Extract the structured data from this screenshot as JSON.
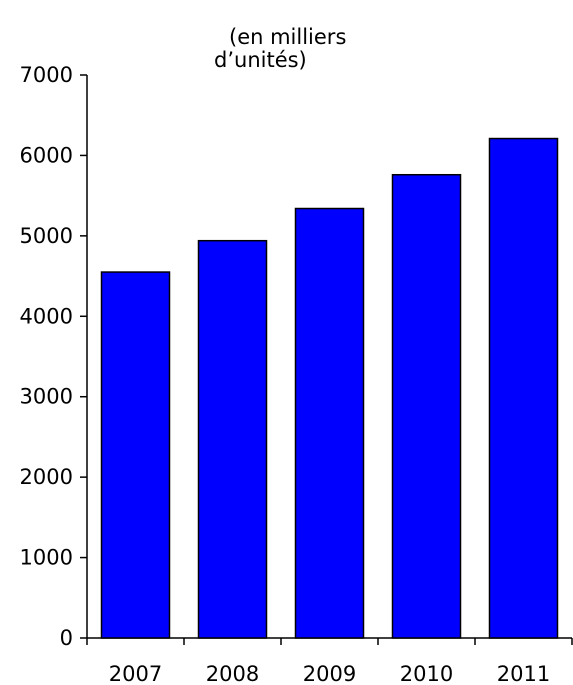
{
  "chart_data": {
    "type": "bar",
    "title_lines": [
      "(en milliers",
      "d’unités)"
    ],
    "xlabel": "",
    "ylabel": "",
    "categories": [
      "2007",
      "2008",
      "2009",
      "2010",
      "2011"
    ],
    "series": [
      {
        "values": [
          4550,
          4940,
          5340,
          5760,
          6210
        ],
        "color": "#0000FF"
      }
    ],
    "ylim": [
      0,
      7000
    ],
    "yticks": [
      0,
      1000,
      2000,
      3000,
      4000,
      5000,
      6000,
      7000
    ],
    "grid": false,
    "legend": "none"
  }
}
